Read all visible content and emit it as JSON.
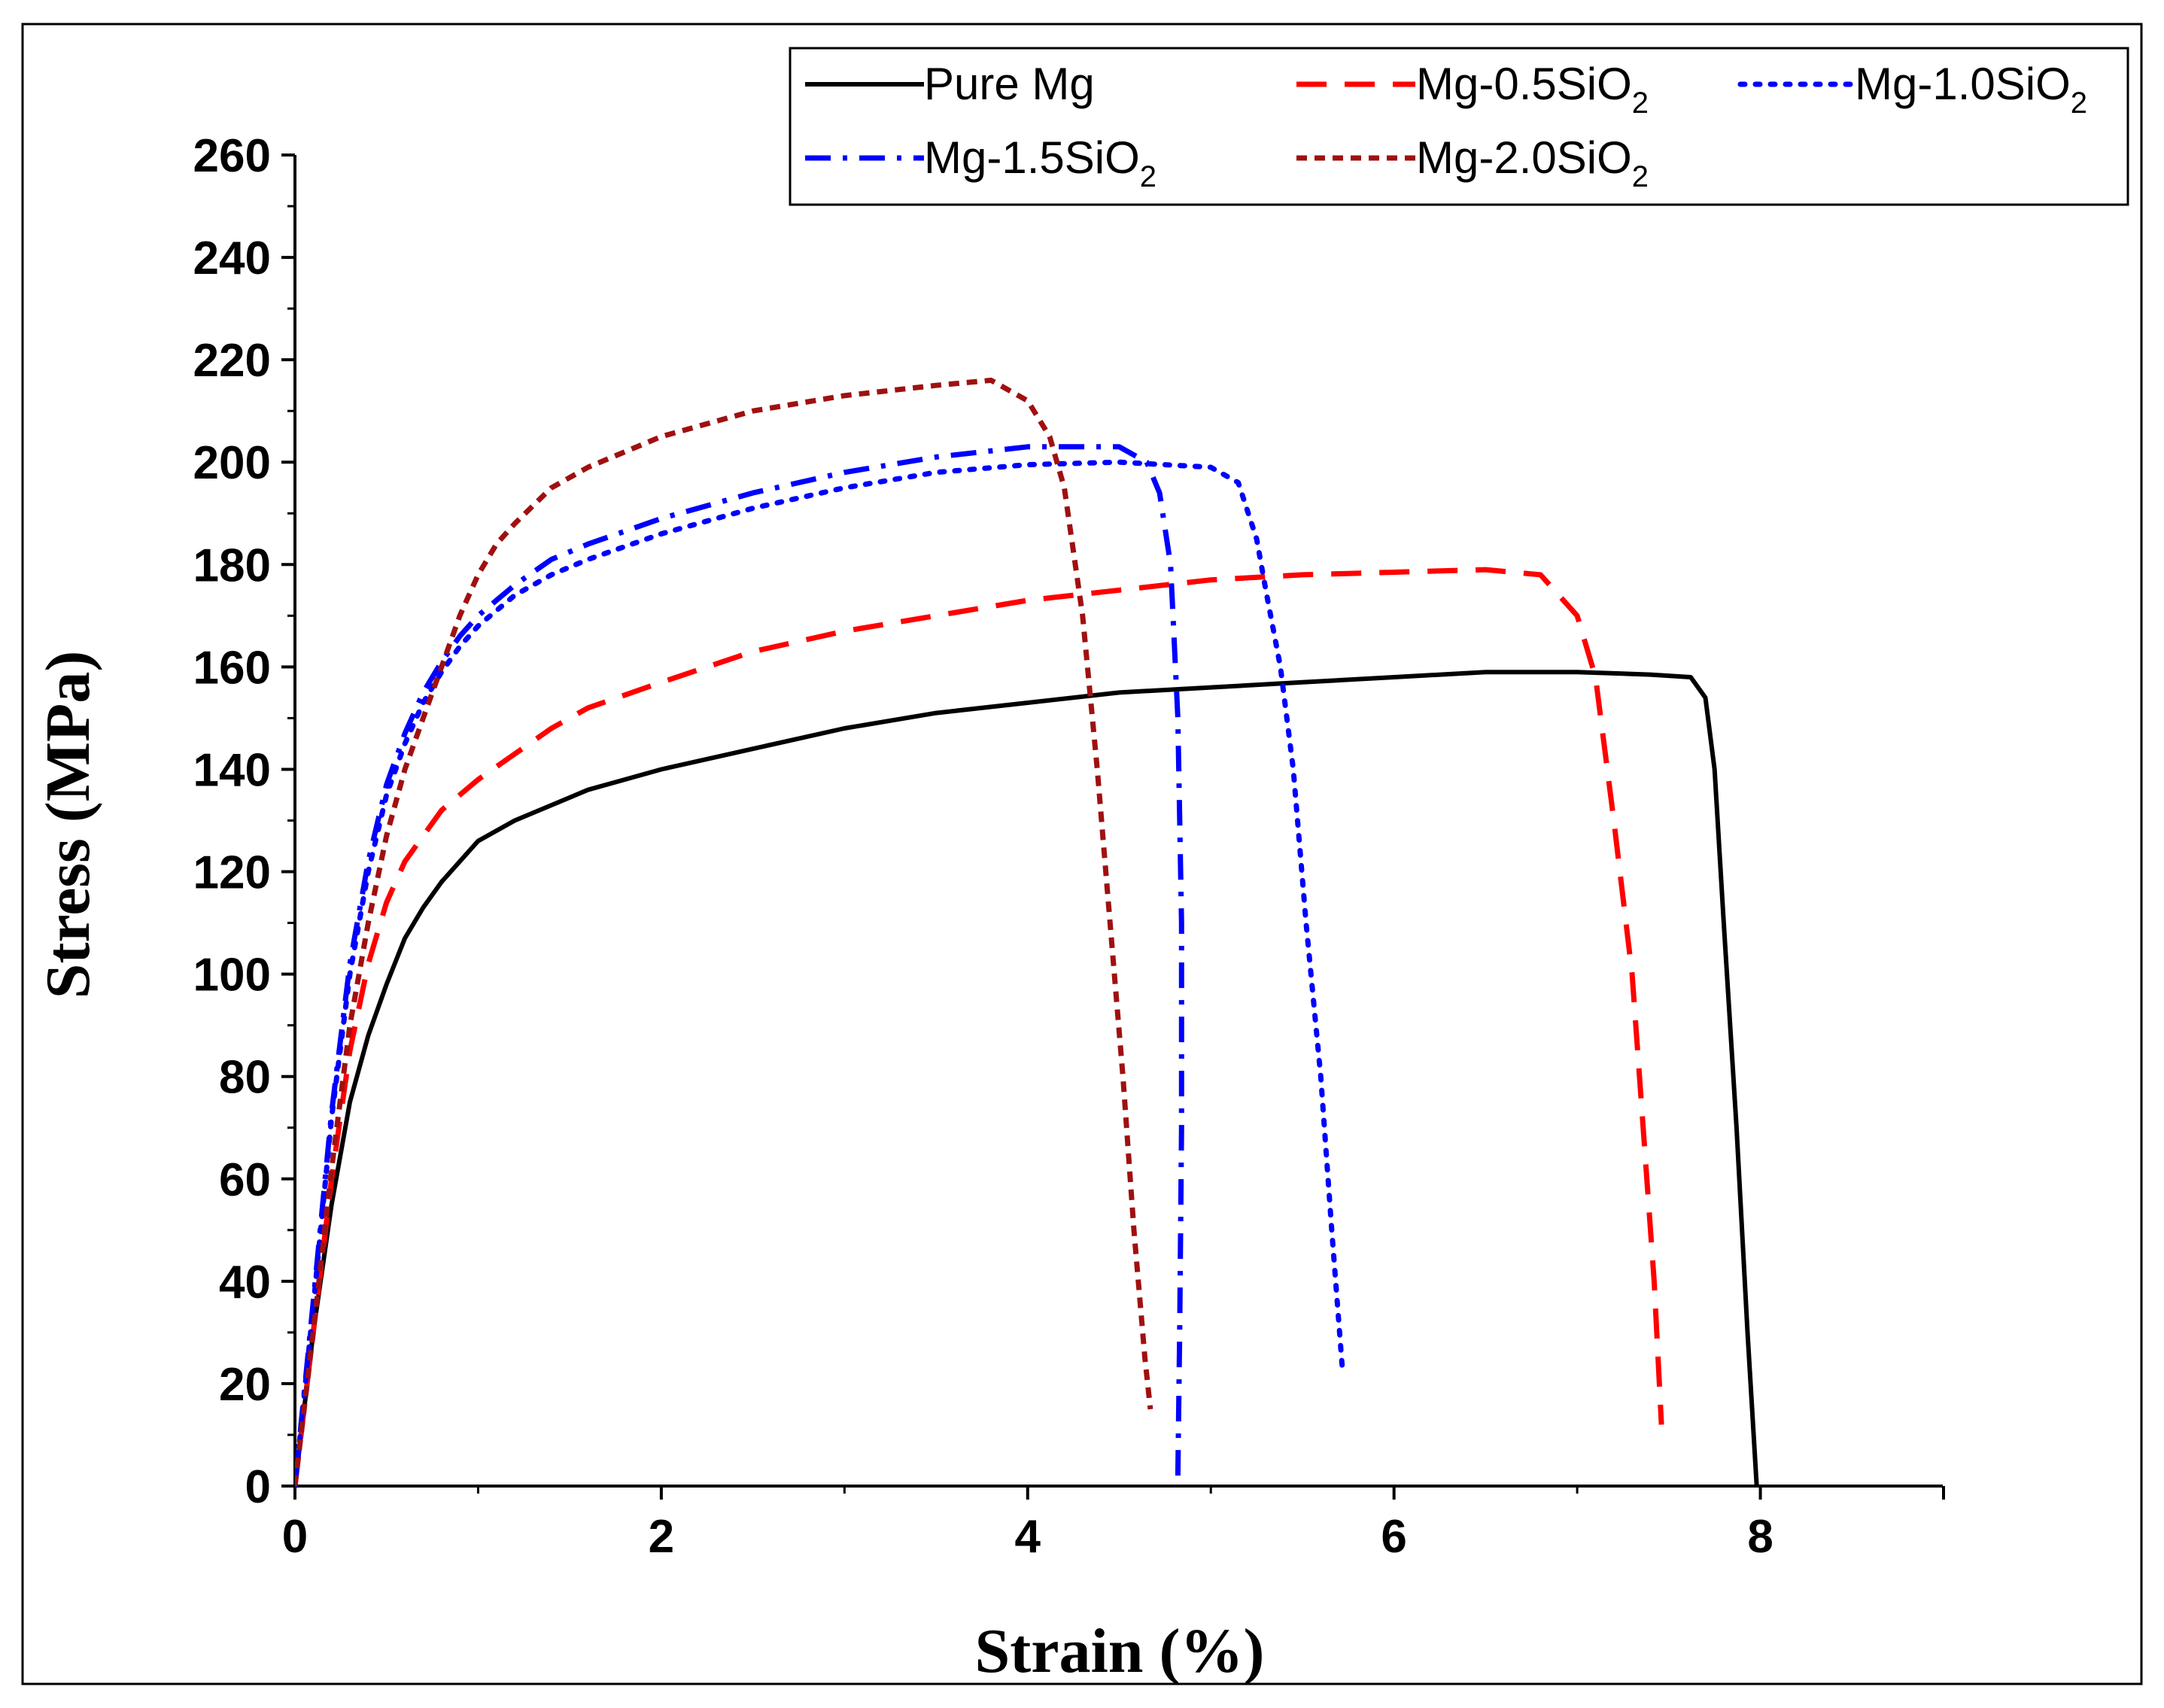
{
  "chart_data": {
    "type": "line",
    "title": "",
    "xlabel": "Strain (%)",
    "ylabel": "Stress (MPa)",
    "xlim": [
      0,
      9
    ],
    "ylim": [
      0,
      260
    ],
    "x_ticks": [
      0,
      2,
      4,
      6,
      8
    ],
    "x_tick_labels": [
      "0",
      "2",
      "4",
      "6",
      "8"
    ],
    "y_ticks": [
      0,
      20,
      40,
      60,
      80,
      100,
      120,
      140,
      160,
      180,
      200,
      220,
      240,
      260
    ],
    "y_tick_labels": [
      "0",
      "20",
      "40",
      "60",
      "80",
      "100",
      "120",
      "140",
      "160",
      "180",
      "200",
      "220",
      "240",
      "260"
    ],
    "grid": false,
    "legend_position": "top-right",
    "series": [
      {
        "name": "Pure Mg",
        "label_main": "Pure Mg",
        "label_sub": "",
        "color": "#000000",
        "style": "solid",
        "points": [
          [
            0,
            0
          ],
          [
            0.1,
            30
          ],
          [
            0.2,
            55
          ],
          [
            0.3,
            75
          ],
          [
            0.4,
            88
          ],
          [
            0.5,
            98
          ],
          [
            0.6,
            107
          ],
          [
            0.7,
            113
          ],
          [
            0.8,
            118
          ],
          [
            0.9,
            122
          ],
          [
            1.0,
            126
          ],
          [
            1.2,
            130
          ],
          [
            1.4,
            133
          ],
          [
            1.6,
            136
          ],
          [
            1.8,
            138
          ],
          [
            2.0,
            140
          ],
          [
            2.5,
            144
          ],
          [
            3.0,
            148
          ],
          [
            3.5,
            151
          ],
          [
            4.0,
            153
          ],
          [
            4.5,
            155
          ],
          [
            5.0,
            156
          ],
          [
            5.5,
            157
          ],
          [
            6.0,
            158
          ],
          [
            6.5,
            159
          ],
          [
            7.0,
            159
          ],
          [
            7.4,
            158.5
          ],
          [
            7.62,
            158
          ],
          [
            7.7,
            154
          ],
          [
            7.75,
            140
          ],
          [
            7.8,
            110
          ],
          [
            7.87,
            70
          ],
          [
            7.93,
            30
          ],
          [
            7.98,
            0
          ]
        ]
      },
      {
        "name": "Mg-0.5SiO2",
        "label_main": "Mg-0.5SiO",
        "label_sub": "2",
        "color": "#ff0000",
        "style": "dashed",
        "points": [
          [
            0,
            0
          ],
          [
            0.1,
            30
          ],
          [
            0.2,
            60
          ],
          [
            0.3,
            85
          ],
          [
            0.4,
            102
          ],
          [
            0.5,
            114
          ],
          [
            0.6,
            122
          ],
          [
            0.7,
            127
          ],
          [
            0.8,
            132
          ],
          [
            1.0,
            138
          ],
          [
            1.2,
            143
          ],
          [
            1.4,
            148
          ],
          [
            1.6,
            152
          ],
          [
            2.0,
            157
          ],
          [
            2.5,
            163
          ],
          [
            3.0,
            167
          ],
          [
            3.5,
            170
          ],
          [
            4.0,
            173
          ],
          [
            4.5,
            175
          ],
          [
            5.0,
            177
          ],
          [
            5.5,
            178
          ],
          [
            6.0,
            178.5
          ],
          [
            6.5,
            179
          ],
          [
            6.8,
            178
          ],
          [
            7.0,
            170
          ],
          [
            7.1,
            158
          ],
          [
            7.2,
            130
          ],
          [
            7.3,
            100
          ],
          [
            7.36,
            70
          ],
          [
            7.42,
            40
          ],
          [
            7.46,
            12
          ]
        ]
      },
      {
        "name": "Mg-1.0SiO2",
        "label_main": "Mg-1.0SiO",
        "label_sub": "2",
        "color": "#0000ff",
        "style": "dotted",
        "points": [
          [
            0,
            0
          ],
          [
            0.1,
            35
          ],
          [
            0.2,
            72
          ],
          [
            0.3,
            100
          ],
          [
            0.4,
            120
          ],
          [
            0.5,
            135
          ],
          [
            0.6,
            145
          ],
          [
            0.7,
            153
          ],
          [
            0.8,
            159
          ],
          [
            0.9,
            164
          ],
          [
            1.0,
            168
          ],
          [
            1.2,
            174
          ],
          [
            1.4,
            178
          ],
          [
            1.6,
            181
          ],
          [
            2.0,
            186
          ],
          [
            2.5,
            191
          ],
          [
            3.0,
            195
          ],
          [
            3.5,
            198
          ],
          [
            4.0,
            199.5
          ],
          [
            4.5,
            200
          ],
          [
            5.0,
            199
          ],
          [
            5.15,
            196
          ],
          [
            5.25,
            185
          ],
          [
            5.3,
            175
          ],
          [
            5.38,
            160
          ],
          [
            5.45,
            140
          ],
          [
            5.52,
            110
          ],
          [
            5.6,
            80
          ],
          [
            5.66,
            50
          ],
          [
            5.72,
            22
          ]
        ]
      },
      {
        "name": "Mg-1.5SiO2",
        "label_main": "Mg-1.5SiO",
        "label_sub": "2",
        "color": "#0000ff",
        "style": "dashdot",
        "points": [
          [
            0,
            0
          ],
          [
            0.1,
            36
          ],
          [
            0.2,
            73
          ],
          [
            0.3,
            102
          ],
          [
            0.4,
            122
          ],
          [
            0.5,
            137
          ],
          [
            0.6,
            147
          ],
          [
            0.7,
            155
          ],
          [
            0.8,
            161
          ],
          [
            0.9,
            166
          ],
          [
            1.0,
            170
          ],
          [
            1.2,
            176
          ],
          [
            1.4,
            181
          ],
          [
            1.6,
            184
          ],
          [
            2.0,
            189
          ],
          [
            2.5,
            194
          ],
          [
            3.0,
            198
          ],
          [
            3.5,
            201
          ],
          [
            4.0,
            203
          ],
          [
            4.5,
            203
          ],
          [
            4.65,
            200
          ],
          [
            4.72,
            194
          ],
          [
            4.78,
            180
          ],
          [
            4.82,
            150
          ],
          [
            4.84,
            110
          ],
          [
            4.84,
            70
          ],
          [
            4.83,
            30
          ],
          [
            4.82,
            2
          ]
        ]
      },
      {
        "name": "Mg-2.0SiO2",
        "label_main": "Mg-2.0SiO",
        "label_sub": "2",
        "color": "#a01010",
        "style": "shortdash",
        "points": [
          [
            0,
            0
          ],
          [
            0.1,
            30
          ],
          [
            0.2,
            62
          ],
          [
            0.3,
            90
          ],
          [
            0.4,
            110
          ],
          [
            0.5,
            127
          ],
          [
            0.6,
            140
          ],
          [
            0.7,
            150
          ],
          [
            0.8,
            160
          ],
          [
            0.9,
            170
          ],
          [
            1.0,
            178
          ],
          [
            1.1,
            184
          ],
          [
            1.2,
            188
          ],
          [
            1.4,
            195
          ],
          [
            1.6,
            199
          ],
          [
            2.0,
            205
          ],
          [
            2.5,
            210
          ],
          [
            3.0,
            213
          ],
          [
            3.5,
            215
          ],
          [
            3.8,
            216
          ],
          [
            4.0,
            212
          ],
          [
            4.12,
            205
          ],
          [
            4.2,
            195
          ],
          [
            4.3,
            170
          ],
          [
            4.38,
            140
          ],
          [
            4.45,
            110
          ],
          [
            4.52,
            80
          ],
          [
            4.58,
            50
          ],
          [
            4.64,
            25
          ],
          [
            4.67,
            15
          ]
        ]
      }
    ]
  }
}
